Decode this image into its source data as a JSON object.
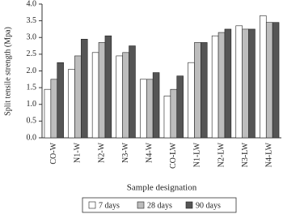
{
  "chart_data": {
    "type": "bar",
    "y_label": "Split tensile strength (Mpa)",
    "x_label": "Sample designation",
    "categories": [
      "CO-W",
      "N1-W",
      "N2-W",
      "N3-W",
      "N4-W",
      "CO-LW",
      "N1-LW",
      "N2-LW",
      "N3-LW",
      "N4-LW"
    ],
    "series": [
      {
        "name": "7 days",
        "color": "#ffffff",
        "values": [
          1.45,
          2.05,
          2.55,
          2.45,
          1.75,
          1.25,
          2.25,
          3.05,
          3.35,
          3.65
        ]
      },
      {
        "name": "28 days",
        "color": "#bdbdbd",
        "values": [
          1.75,
          2.45,
          2.85,
          2.55,
          1.75,
          1.45,
          2.85,
          3.15,
          3.25,
          3.45
        ]
      },
      {
        "name": "90 days",
        "color": "#555555",
        "values": [
          2.25,
          2.95,
          3.05,
          2.75,
          1.95,
          1.85,
          2.85,
          3.25,
          3.25,
          3.45
        ]
      }
    ],
    "ylim": [
      0,
      4
    ],
    "yticks": [
      {
        "value": 0,
        "label": "0.0"
      },
      0.5,
      {
        "value": 1,
        "label": "1.0"
      },
      1.5,
      {
        "value": 2,
        "label": "2.0"
      },
      2.5,
      {
        "value": 3,
        "label": "3.0"
      },
      3.5,
      {
        "value": 4,
        "label": "4.0"
      }
    ],
    "legend": "bottom"
  }
}
